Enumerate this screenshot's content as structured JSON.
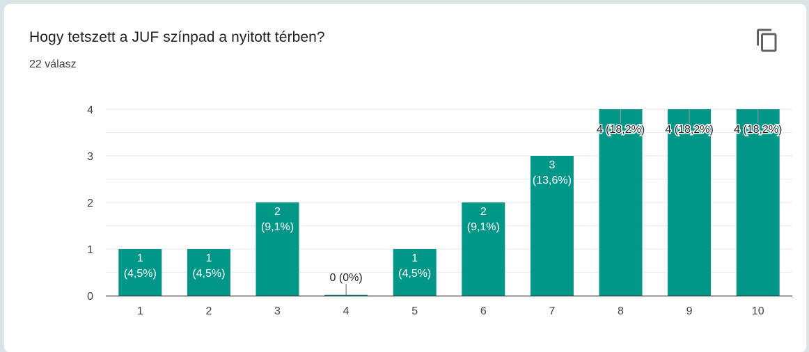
{
  "card": {
    "title": "Hogy tetszett a JUF színpad a nyitott térben?",
    "subtitle": "22 válasz",
    "copy_icon": "copy-icon"
  },
  "colors": {
    "bar": "#009688",
    "grid": "#e5e5e5",
    "axis": "#333333",
    "label_inside": "#ffffff",
    "label_outside": "#222222"
  },
  "chart_data": {
    "type": "bar",
    "title": "",
    "xlabel": "",
    "ylabel": "",
    "categories": [
      "1",
      "2",
      "3",
      "4",
      "5",
      "6",
      "7",
      "8",
      "9",
      "10"
    ],
    "values": [
      1,
      1,
      2,
      0,
      1,
      2,
      3,
      4,
      4,
      4
    ],
    "yticks": [
      "0",
      "1",
      "2",
      "3",
      "4"
    ],
    "ylim": [
      0,
      4
    ],
    "grid": true,
    "legend": "none",
    "data_labels": [
      "1 (4,5%)",
      "1 (4,5%)",
      "2 (9,1%)",
      "0 (0%)",
      "1 (4,5%)",
      "2 (9,1%)",
      "3 (13,6%)",
      "4 (18,2%)",
      "4 (18,2%)",
      "4 (18,2%)"
    ]
  }
}
